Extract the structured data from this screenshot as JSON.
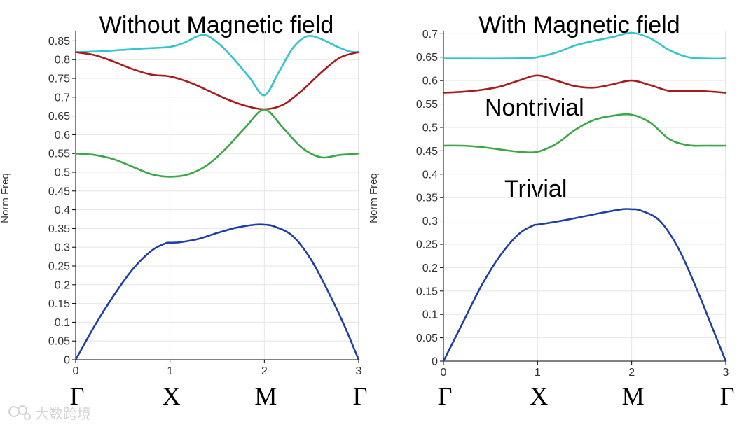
{
  "colors": {
    "cyan": "#33c4cf",
    "red": "#a81b1b",
    "green": "#3aa844",
    "blue": "#1f3fa8",
    "grid": "#e6e6e6",
    "axis": "#000000"
  },
  "watermark": {
    "icon": "logo-icon",
    "text": "大数跨境"
  },
  "chart_data": [
    {
      "type": "line",
      "title": "Without Magnetic field",
      "xlabel": "",
      "ylabel": "Norm Freq",
      "xlim": [
        0,
        3
      ],
      "ylim": [
        0,
        0.875
      ],
      "grid": true,
      "legend": "none",
      "xticks": [
        0,
        1,
        2,
        3
      ],
      "xtick_labels": [
        "0",
        "1",
        "2",
        "3"
      ],
      "yticks": [
        0,
        0.05,
        0.1,
        0.15,
        0.2,
        0.25,
        0.3,
        0.35,
        0.4,
        0.45,
        0.5,
        0.55,
        0.6,
        0.65,
        0.7,
        0.75,
        0.8,
        0.85
      ],
      "ytick_labels": [
        "0",
        "0.05",
        "0.1",
        "0.15",
        "0.2",
        "0.25",
        "0.3",
        "0.35",
        "0.4",
        "0.45",
        "0.5",
        "0.55",
        "0.6",
        "0.65",
        "0.7",
        "0.75",
        "0.8",
        "0.85"
      ],
      "symmetry_points": [
        "Γ",
        "X",
        "M",
        "Γ"
      ],
      "annotations": [],
      "series": [
        {
          "color": "#33c4cf",
          "x": [
            0,
            0.25,
            0.5,
            0.75,
            1.0,
            1.15,
            1.3,
            1.4,
            1.55,
            1.7,
            1.85,
            2.0,
            2.15,
            2.3,
            2.45,
            2.6,
            2.75,
            2.9,
            3.0
          ],
          "y": [
            0.82,
            0.822,
            0.826,
            0.83,
            0.834,
            0.845,
            0.863,
            0.863,
            0.835,
            0.795,
            0.75,
            0.705,
            0.765,
            0.83,
            0.862,
            0.855,
            0.837,
            0.822,
            0.82
          ]
        },
        {
          "color": "#a81b1b",
          "x": [
            0,
            0.2,
            0.4,
            0.6,
            0.8,
            1.0,
            1.2,
            1.4,
            1.6,
            1.8,
            2.0,
            2.2,
            2.4,
            2.6,
            2.8,
            3.0
          ],
          "y": [
            0.82,
            0.812,
            0.795,
            0.775,
            0.76,
            0.755,
            0.74,
            0.718,
            0.695,
            0.677,
            0.668,
            0.68,
            0.718,
            0.765,
            0.805,
            0.82
          ]
        },
        {
          "color": "#3aa844",
          "x": [
            0,
            0.2,
            0.4,
            0.6,
            0.8,
            1.0,
            1.2,
            1.4,
            1.6,
            1.8,
            2.0,
            2.2,
            2.4,
            2.6,
            2.8,
            3.0
          ],
          "y": [
            0.55,
            0.546,
            0.535,
            0.515,
            0.495,
            0.488,
            0.495,
            0.52,
            0.565,
            0.62,
            0.667,
            0.618,
            0.565,
            0.54,
            0.546,
            0.55
          ]
        },
        {
          "color": "#1f3fa8",
          "x": [
            0,
            0.2,
            0.4,
            0.6,
            0.8,
            0.95,
            1.0,
            1.1,
            1.3,
            1.5,
            1.7,
            1.9,
            2.0,
            2.1,
            2.3,
            2.5,
            2.7,
            2.85,
            3.0
          ],
          "y": [
            0,
            0.09,
            0.17,
            0.24,
            0.29,
            0.31,
            0.312,
            0.313,
            0.322,
            0.338,
            0.352,
            0.36,
            0.36,
            0.356,
            0.33,
            0.265,
            0.17,
            0.09,
            0
          ]
        }
      ]
    },
    {
      "type": "line",
      "title": "With Magnetic field",
      "xlabel": "",
      "ylabel": "Norm Freq",
      "xlim": [
        0,
        3
      ],
      "ylim": [
        0,
        0.705
      ],
      "grid": true,
      "legend": "none",
      "xticks": [
        0,
        1,
        2,
        3
      ],
      "xtick_labels": [
        "0",
        "1",
        "2",
        "3"
      ],
      "yticks": [
        0,
        0.05,
        0.1,
        0.15,
        0.2,
        0.25,
        0.3,
        0.35,
        0.4,
        0.45,
        0.5,
        0.55,
        0.6,
        0.65,
        0.7
      ],
      "ytick_labels": [
        "0",
        "0.05",
        "0.1",
        "0.15",
        "0.2",
        "0.25",
        "0.3",
        "0.35",
        "0.4",
        "0.45",
        "0.5",
        "0.55",
        "0.6",
        "0.65",
        "0.7"
      ],
      "symmetry_points": [
        "Γ",
        "X",
        "M",
        "Γ"
      ],
      "annotations": [
        {
          "text": "Nontrivial",
          "x": 0.45,
          "y": 0.548
        },
        {
          "text": "Trivial",
          "x": 0.65,
          "y": 0.37
        }
      ],
      "series": [
        {
          "color": "#33c4cf",
          "x": [
            0,
            0.3,
            0.6,
            0.9,
            1.0,
            1.2,
            1.4,
            1.6,
            1.8,
            2.0,
            2.2,
            2.4,
            2.6,
            2.8,
            3.0
          ],
          "y": [
            0.647,
            0.647,
            0.647,
            0.648,
            0.65,
            0.66,
            0.675,
            0.685,
            0.693,
            0.702,
            0.69,
            0.665,
            0.65,
            0.647,
            0.647
          ]
        },
        {
          "color": "#a81b1b",
          "x": [
            0,
            0.2,
            0.4,
            0.6,
            0.8,
            1.0,
            1.2,
            1.4,
            1.6,
            1.8,
            2.0,
            2.2,
            2.4,
            2.6,
            2.8,
            3.0
          ],
          "y": [
            0.574,
            0.576,
            0.58,
            0.587,
            0.6,
            0.611,
            0.6,
            0.588,
            0.585,
            0.592,
            0.6,
            0.59,
            0.578,
            0.578,
            0.577,
            0.574
          ]
        },
        {
          "color": "#3aa844",
          "x": [
            0,
            0.2,
            0.4,
            0.6,
            0.8,
            1.0,
            1.2,
            1.4,
            1.6,
            1.8,
            2.0,
            2.2,
            2.4,
            2.6,
            2.8,
            3.0
          ],
          "y": [
            0.461,
            0.461,
            0.458,
            0.453,
            0.448,
            0.448,
            0.465,
            0.495,
            0.516,
            0.525,
            0.527,
            0.51,
            0.475,
            0.462,
            0.461,
            0.461
          ]
        },
        {
          "color": "#1f3fa8",
          "x": [
            0,
            0.2,
            0.4,
            0.6,
            0.8,
            0.95,
            1.0,
            1.1,
            1.3,
            1.5,
            1.7,
            1.9,
            2.0,
            2.1,
            2.3,
            2.5,
            2.7,
            2.85,
            3.0
          ],
          "y": [
            0,
            0.08,
            0.16,
            0.225,
            0.272,
            0.29,
            0.292,
            0.295,
            0.302,
            0.31,
            0.318,
            0.325,
            0.325,
            0.322,
            0.3,
            0.24,
            0.15,
            0.075,
            0
          ]
        }
      ]
    }
  ]
}
